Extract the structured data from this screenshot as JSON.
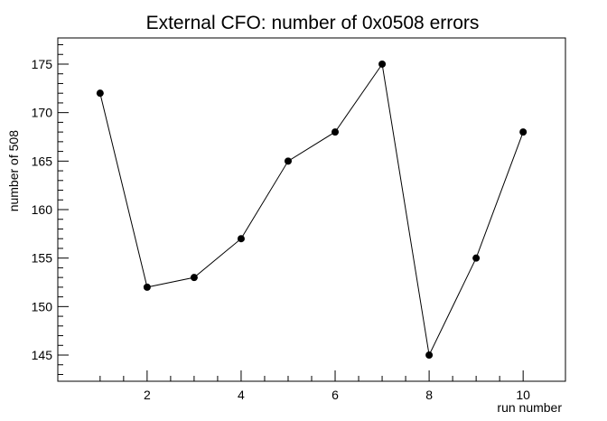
{
  "chart_data": {
    "type": "line",
    "title": "External CFO: number of 0x0508 errors",
    "xlabel": "run number",
    "ylabel": "number of 508",
    "xlim": [
      0.1,
      10.9
    ],
    "ylim": [
      142.3,
      177.7
    ],
    "x_major_ticks": [
      2,
      4,
      6,
      8,
      10
    ],
    "x_tick_labels": [
      "2",
      "4",
      "6",
      "8",
      "10"
    ],
    "y_major_ticks": [
      145,
      150,
      155,
      160,
      165,
      170,
      175
    ],
    "y_tick_labels": [
      "145",
      "150",
      "155",
      "160",
      "165",
      "170",
      "175"
    ],
    "grid": false,
    "series": [
      {
        "x": [
          1,
          2,
          3,
          4,
          5,
          6,
          7,
          8,
          9,
          10
        ],
        "values": [
          172,
          152,
          153,
          157,
          165,
          168,
          175,
          145,
          155,
          168
        ]
      }
    ],
    "line_color": "#000000",
    "marker_color": "#000000"
  }
}
